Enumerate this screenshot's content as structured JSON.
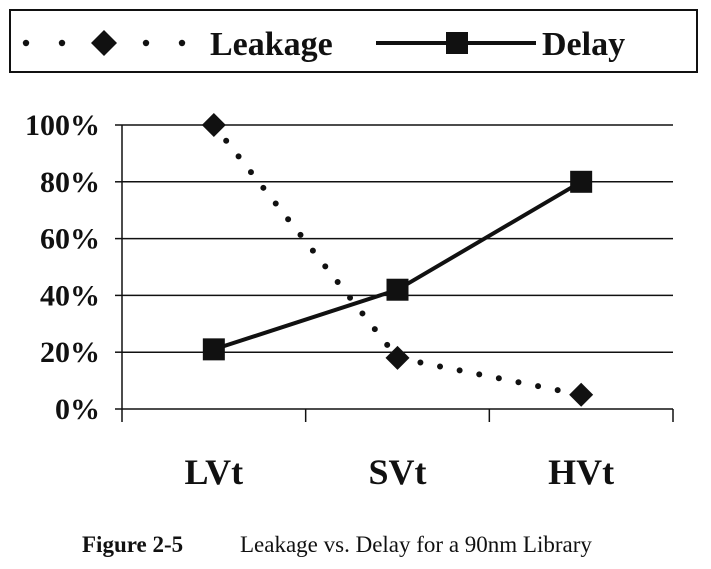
{
  "chart_data": {
    "type": "line",
    "categories": [
      "LVt",
      "SVt",
      "HVt"
    ],
    "series": [
      {
        "name": "Leakage",
        "values": [
          100,
          18,
          5
        ],
        "marker": "diamond",
        "line_style": "dotted",
        "color": "#111111"
      },
      {
        "name": "Delay",
        "values": [
          21,
          42,
          80
        ],
        "marker": "square",
        "line_style": "solid",
        "color": "#111111"
      }
    ],
    "y_ticks": [
      "0%",
      "20%",
      "40%",
      "60%",
      "80%",
      "100%"
    ],
    "ylim": [
      0,
      100
    ],
    "grid": true,
    "legend_position": "top"
  },
  "caption": {
    "label": "Figure 2-5",
    "text": "Leakage vs. Delay for a 90nm Library"
  }
}
